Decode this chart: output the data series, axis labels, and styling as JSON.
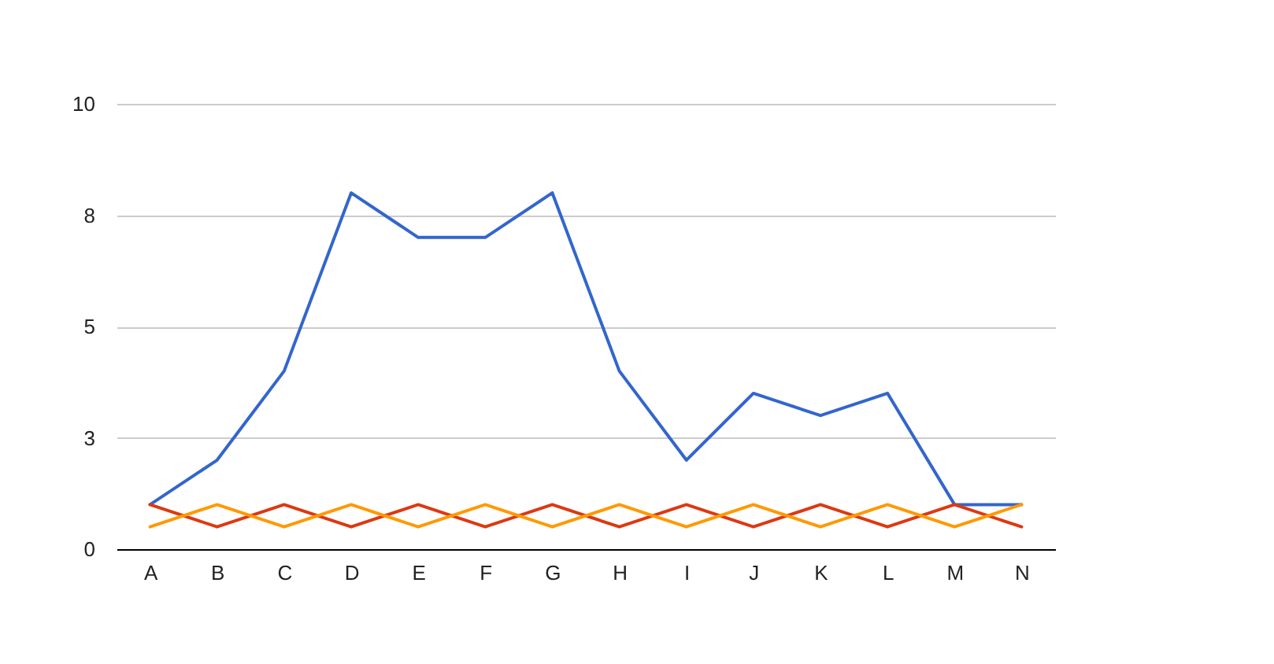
{
  "chart_data": {
    "type": "line",
    "categories": [
      "A",
      "B",
      "C",
      "D",
      "E",
      "F",
      "G",
      "H",
      "I",
      "J",
      "K",
      "L",
      "M",
      "N"
    ],
    "series": [
      {
        "color": "#3366cc",
        "values": [
          1,
          2,
          4,
          8,
          7,
          7,
          8,
          4,
          2,
          3.5,
          3,
          3.5,
          1,
          1
        ]
      },
      {
        "color": "#dc3912",
        "values": [
          1,
          0.5,
          1,
          0.5,
          1,
          0.5,
          1,
          0.5,
          1,
          0.5,
          1,
          0.5,
          1,
          0.5
        ]
      },
      {
        "color": "#ff9900",
        "values": [
          0.5,
          1,
          0.5,
          1,
          0.5,
          1,
          0.5,
          1,
          0.5,
          1,
          0.5,
          1,
          0.5,
          1
        ]
      }
    ],
    "ylim": [
      0,
      10
    ],
    "yticks": [
      0,
      {
        "value": 2.5,
        "label": "3"
      },
      5,
      {
        "value": 7.5,
        "label": "8"
      },
      10
    ],
    "grid": "y"
  }
}
